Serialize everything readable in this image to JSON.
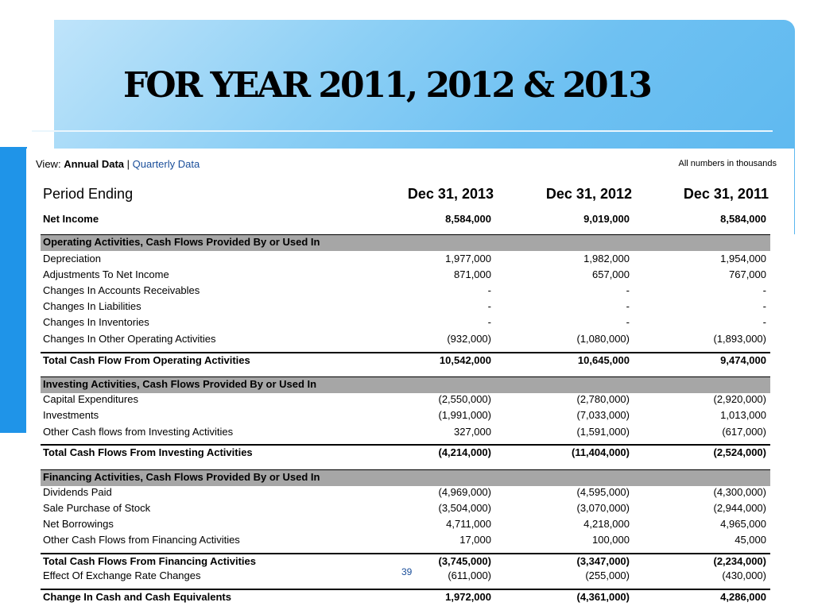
{
  "slide": {
    "title": "FOR YEAR 2011, 2012 & 2013",
    "page_number": "39"
  },
  "table": {
    "view_label": "View:",
    "annual_label": "Annual Data",
    "separator": "|",
    "quarterly_label": "Quarterly Data",
    "units_note": "All numbers in thousands",
    "period_label": "Period Ending",
    "columns": [
      "Dec 31, 2013",
      "Dec 31, 2012",
      "Dec 31, 2011"
    ],
    "rows": [
      {
        "label": "Net Income",
        "values": [
          "8,584,000",
          "9,019,000",
          "8,584,000"
        ],
        "kind": "bold"
      },
      {
        "label": "Operating Activities, Cash Flows Provided By or Used In",
        "kind": "section"
      },
      {
        "label": "Depreciation",
        "values": [
          "1,977,000",
          "1,982,000",
          "1,954,000"
        ]
      },
      {
        "label": "Adjustments To Net Income",
        "values": [
          "871,000",
          "657,000",
          "767,000"
        ]
      },
      {
        "label": "Changes In Accounts Receivables",
        "values": [
          "-",
          "-",
          "-"
        ]
      },
      {
        "label": "Changes In Liabilities",
        "values": [
          "-",
          "-",
          "-"
        ]
      },
      {
        "label": "Changes In Inventories",
        "values": [
          "-",
          "-",
          "-"
        ]
      },
      {
        "label": "Changes In Other Operating Activities",
        "values": [
          "(932,000)",
          "(1,080,000)",
          "(1,893,000)"
        ]
      },
      {
        "label": "Total Cash Flow From Operating Activities",
        "values": [
          "10,542,000",
          "10,645,000",
          "9,474,000"
        ],
        "kind": "bold"
      },
      {
        "label": "Investing Activities, Cash Flows Provided By or Used In",
        "kind": "section"
      },
      {
        "label": "Capital Expenditures",
        "values": [
          "(2,550,000)",
          "(2,780,000)",
          "(2,920,000)"
        ]
      },
      {
        "label": "Investments",
        "values": [
          "(1,991,000)",
          "(7,033,000)",
          "1,013,000"
        ]
      },
      {
        "label": "Other Cash flows from Investing Activities",
        "values": [
          "327,000",
          "(1,591,000)",
          "(617,000)"
        ]
      },
      {
        "label": "Total Cash Flows From Investing Activities",
        "values": [
          "(4,214,000)",
          "(11,404,000)",
          "(2,524,000)"
        ],
        "kind": "bold"
      },
      {
        "label": "Financing Activities, Cash Flows Provided By or Used In",
        "kind": "section"
      },
      {
        "label": "Dividends Paid",
        "values": [
          "(4,969,000)",
          "(4,595,000)",
          "(4,300,000)"
        ]
      },
      {
        "label": "Sale Purchase of Stock",
        "values": [
          "(3,504,000)",
          "(3,070,000)",
          "(2,944,000)"
        ]
      },
      {
        "label": "Net Borrowings",
        "values": [
          "4,711,000",
          "4,218,000",
          "4,965,000"
        ]
      },
      {
        "label": "Other Cash Flows from Financing Activities",
        "values": [
          "17,000",
          "100,000",
          "45,000"
        ]
      },
      {
        "label": "Total Cash Flows From Financing Activities",
        "values": [
          "(3,745,000)",
          "(3,347,000)",
          "(2,234,000)"
        ],
        "kind": "bold"
      },
      {
        "label": "Effect Of Exchange Rate Changes",
        "values": [
          "(611,000)",
          "(255,000)",
          "(430,000)"
        ]
      },
      {
        "label": "Change In Cash and Cash Equivalents",
        "values": [
          "1,972,000",
          "(4,361,000)",
          "4,286,000"
        ],
        "kind": "bold"
      }
    ]
  },
  "colors": {
    "section_header_bg": "#a6a6a6",
    "link": "#1a4e9a",
    "accent_blue": "#1f94e8"
  }
}
